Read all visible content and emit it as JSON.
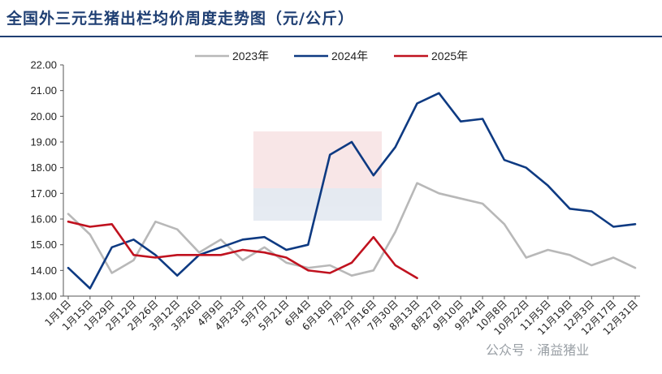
{
  "title": "全国外三元生猪出栏均价周度走势图（元/公斤）",
  "watermark": "公众号 · 涌益猪业",
  "chart_data": {
    "type": "line",
    "title": "全国外三元生猪出栏均价周度走势图（元/公斤）",
    "xlabel": "",
    "ylabel": "",
    "ylim": [
      13.0,
      22.0
    ],
    "yticks": [
      "13.00",
      "14.00",
      "15.00",
      "16.00",
      "17.00",
      "18.00",
      "19.00",
      "20.00",
      "21.00",
      "22.00"
    ],
    "categories": [
      "1月1日",
      "1月15日",
      "1月29日",
      "2月12日",
      "2月26日",
      "3月12日",
      "3月26日",
      "4月9日",
      "4月23日",
      "5月7日",
      "5月21日",
      "6月4日",
      "6月18日",
      "7月2日",
      "7月16日",
      "7月30日",
      "8月13日",
      "8月27日",
      "9月10日",
      "9月24日",
      "10月8日",
      "10月22日",
      "11月5日",
      "11月19日",
      "12月3日",
      "12月17日",
      "12月31日"
    ],
    "legend_position": "top",
    "grid": false,
    "series": [
      {
        "name": "2023年",
        "color": "#b8b8b8",
        "values": [
          16.2,
          15.4,
          13.9,
          14.4,
          15.9,
          15.6,
          14.7,
          15.2,
          14.4,
          14.9,
          14.3,
          14.1,
          14.2,
          13.8,
          14.0,
          15.5,
          17.4,
          17.0,
          16.8,
          16.6,
          15.8,
          14.5,
          14.8,
          14.6,
          14.2,
          14.5,
          14.1
        ]
      },
      {
        "name": "2024年",
        "color": "#0e3a82",
        "values": [
          14.1,
          13.3,
          14.9,
          15.2,
          14.6,
          13.8,
          14.6,
          14.9,
          15.2,
          15.3,
          14.8,
          15.0,
          18.5,
          19.0,
          17.7,
          18.8,
          20.5,
          20.9,
          19.8,
          19.9,
          18.3,
          18.0,
          17.3,
          16.4,
          16.3,
          15.7,
          15.8
        ]
      },
      {
        "name": "2025年",
        "color": "#c0121f",
        "values": [
          15.9,
          15.7,
          15.8,
          14.6,
          14.5,
          14.6,
          14.6,
          14.6,
          14.8,
          14.7,
          14.5,
          14.0,
          13.9,
          14.3,
          15.3,
          14.2,
          13.7,
          null,
          null,
          null,
          null,
          null,
          null,
          null,
          null,
          null,
          null
        ]
      }
    ]
  }
}
